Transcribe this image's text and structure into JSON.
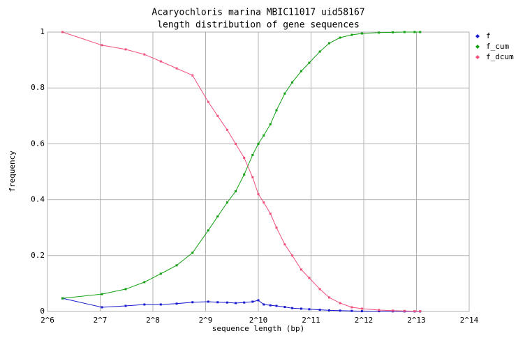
{
  "chart_data": {
    "type": "line",
    "title": "Acaryochloris marina MBIC11017 uid58167",
    "subtitle": "length distribution of gene sequences",
    "x_label": "sequence length (bp)",
    "y_label": "frequency",
    "x_scale": "log2",
    "xlim": [
      64,
      16384
    ],
    "xticks": [
      {
        "value": 64,
        "label": "2^6"
      },
      {
        "value": 128,
        "label": "2^7"
      },
      {
        "value": 256,
        "label": "2^8"
      },
      {
        "value": 512,
        "label": "2^9"
      },
      {
        "value": 1024,
        "label": "2^10"
      },
      {
        "value": 2048,
        "label": "2^11"
      },
      {
        "value": 4096,
        "label": "2^12"
      },
      {
        "value": 8192,
        "label": "2^13"
      },
      {
        "value": 16384,
        "label": "2^14"
      }
    ],
    "ylim": [
      0,
      1
    ],
    "yticks": [
      0,
      0.2,
      0.4,
      0.6,
      0.8,
      1
    ],
    "grid": true,
    "legend": "right",
    "x": [
      78,
      131,
      179,
      229,
      284,
      350,
      431,
      530,
      600,
      680,
      760,
      850,
      950,
      1024,
      1100,
      1200,
      1300,
      1450,
      1600,
      1800,
      2000,
      2300,
      2600,
      3000,
      3500,
      4000,
      5000,
      6000,
      7000,
      8000,
      8600
    ],
    "series": [
      {
        "name": "f",
        "color": "#1a1ad0",
        "values": [
          0.047,
          0.015,
          0.02,
          0.025,
          0.025,
          0.028,
          0.033,
          0.035,
          0.033,
          0.032,
          0.03,
          0.032,
          0.035,
          0.04,
          0.025,
          0.022,
          0.02,
          0.016,
          0.012,
          0.01,
          0.008,
          0.006,
          0.004,
          0.003,
          0.002,
          0.001,
          0.001,
          0.0005,
          0.0003,
          0.0002,
          0.0002
        ]
      },
      {
        "name": "f_cum",
        "color": "#12a012",
        "values": [
          0.047,
          0.062,
          0.08,
          0.105,
          0.135,
          0.165,
          0.21,
          0.29,
          0.34,
          0.39,
          0.43,
          0.49,
          0.56,
          0.6,
          0.63,
          0.67,
          0.72,
          0.78,
          0.82,
          0.86,
          0.89,
          0.93,
          0.96,
          0.98,
          0.99,
          0.995,
          0.998,
          0.999,
          1,
          1,
          1
        ]
      },
      {
        "name": "f_dcum",
        "color": "#f0507c",
        "values": [
          1,
          0.953,
          0.938,
          0.92,
          0.895,
          0.87,
          0.845,
          0.75,
          0.7,
          0.65,
          0.6,
          0.55,
          0.48,
          0.42,
          0.39,
          0.35,
          0.3,
          0.24,
          0.2,
          0.15,
          0.12,
          0.08,
          0.05,
          0.03,
          0.015,
          0.01,
          0.005,
          0.003,
          0.002,
          0.001,
          0.001
        ]
      }
    ]
  }
}
